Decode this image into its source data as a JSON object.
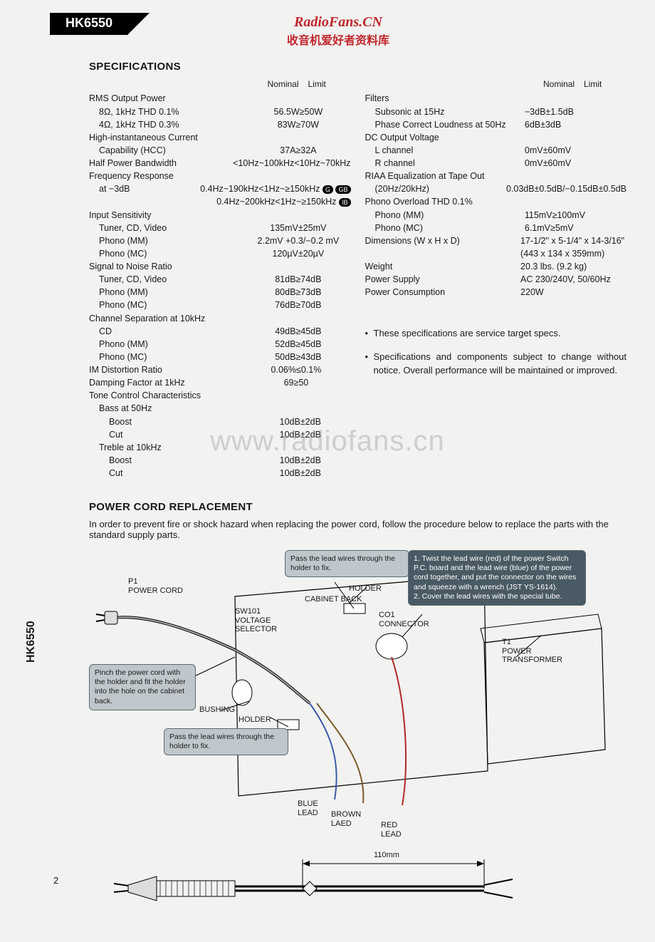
{
  "model": "HK6550",
  "watermark": {
    "line1": "RadioFans.CN",
    "line2": "收音机爱好者资料库",
    "big": "www.radiofans.cn"
  },
  "sections": {
    "specs_title": "SPECIFICATIONS",
    "power_cord_title": "POWER CORD REPLACEMENT",
    "power_cord_intro": "In order to prevent fire or shock hazard when replacing the power cord, follow the procedure below to replace the parts with the standard supply parts."
  },
  "headers": {
    "nominal": "Nominal",
    "limit": "Limit"
  },
  "specs_left": [
    {
      "label": "RMS Output Power",
      "val": ""
    },
    {
      "label": "8Ω, 1kHz THD 0.1%",
      "indent": 1,
      "val": "56.5W≥50W"
    },
    {
      "label": "4Ω, 1kHz THD 0.3%",
      "indent": 1,
      "val": "83W≥70W"
    },
    {
      "label": "High-instantaneous Current",
      "val": ""
    },
    {
      "label": "Capability (HCC)",
      "indent": 1,
      "val": "37A≥32A"
    },
    {
      "label": "Half Power Bandwidth",
      "val": "<10Hz~100kHz<10Hz~70kHz"
    },
    {
      "label": "Frequency Response",
      "val": ""
    },
    {
      "label": "at −3dB",
      "indent": 1,
      "val": "0.4Hz~190kHz<1Hz~≥150kHz",
      "badges": [
        "G",
        "GB"
      ]
    },
    {
      "label": "",
      "val": "0.4Hz~200kHz<1Hz~≥150kHz",
      "badges": [
        "IB"
      ]
    },
    {
      "label": "Input Sensitivity",
      "val": ""
    },
    {
      "label": "Tuner, CD, Video",
      "indent": 1,
      "val": "135mV±25mV"
    },
    {
      "label": "Phono (MM)",
      "indent": 1,
      "val": "2.2mV +0.3/−0.2 mV"
    },
    {
      "label": "Phono (MC)",
      "indent": 1,
      "val": "120µV±20µV"
    },
    {
      "label": "Signal to Noise Ratio",
      "val": ""
    },
    {
      "label": "Tuner, CD, Video",
      "indent": 1,
      "val": "81dB≥74dB"
    },
    {
      "label": "Phono (MM)",
      "indent": 1,
      "val": "80dB≥73dB"
    },
    {
      "label": "Phono (MC)",
      "indent": 1,
      "val": "76dB≥70dB"
    },
    {
      "label": "Channel Separation at 10kHz",
      "val": ""
    },
    {
      "label": "CD",
      "indent": 1,
      "val": "49dB≥45dB"
    },
    {
      "label": "Phono (MM)",
      "indent": 1,
      "val": "52dB≥45dB"
    },
    {
      "label": "Phono (MC)",
      "indent": 1,
      "val": "50dB≥43dB"
    },
    {
      "label": "IM Distortion Ratio",
      "val": "0.06%≤0.1%"
    },
    {
      "label": "Damping Factor at 1kHz",
      "val": "69≥50"
    },
    {
      "label": "Tone Control Characteristics",
      "val": ""
    },
    {
      "label": "Bass at 50Hz",
      "indent": 1,
      "val": ""
    },
    {
      "label": "Boost",
      "indent": 2,
      "val": "10dB±2dB"
    },
    {
      "label": "Cut",
      "indent": 2,
      "val": "10dB±2dB"
    },
    {
      "label": "Treble at 10kHz",
      "indent": 1,
      "val": ""
    },
    {
      "label": "Boost",
      "indent": 2,
      "val": "10dB±2dB"
    },
    {
      "label": "Cut",
      "indent": 2,
      "val": "10dB±2dB"
    }
  ],
  "specs_right": [
    {
      "label": "Filters",
      "val": ""
    },
    {
      "label": "Subsonic at 15Hz",
      "indent": 1,
      "val": "−3dB±1.5dB"
    },
    {
      "label": "Phase Correct Loudness at 50Hz",
      "indent": 1,
      "val": "6dB±3dB"
    },
    {
      "label": "DC Output Voltage",
      "val": ""
    },
    {
      "label": "L channel",
      "indent": 1,
      "val": "0mV±60mV"
    },
    {
      "label": "R channel",
      "indent": 1,
      "val": "0mV±60mV"
    },
    {
      "label": "RIAA Equalization at Tape Out",
      "val": ""
    },
    {
      "label": "(20Hz/20kHz)",
      "indent": 1,
      "val": "0.03dB±0.5dB/−0.15dB±0.5dB"
    },
    {
      "label": "Phono Overload THD 0.1%",
      "val": ""
    },
    {
      "label": "Phono (MM)",
      "indent": 1,
      "val": "115mV≥100mV"
    },
    {
      "label": "Phono (MC)",
      "indent": 1,
      "val": "6.1mV≥5mV"
    },
    {
      "label": "Dimensions (W x H x D)",
      "val": "17-1/2\" x 5-1/4\" x 14-3/16\""
    },
    {
      "label": "",
      "val": "(443 x 134 x 359mm)"
    },
    {
      "label": "Weight",
      "val": "20.3 lbs. (9.2 kg)"
    },
    {
      "label": "Power Supply",
      "val": "AC 230/240V, 50/60Hz"
    },
    {
      "label": "Power Consumption",
      "val": "220W"
    }
  ],
  "notes": [
    "These specifications are service target specs.",
    "Specifications and components subject to change without notice. Overall performance will be maintained or improved."
  ],
  "diagram": {
    "callouts": {
      "pinch": "Pinch the power cord with the holder and fit the holder into the hole on the cabinet back.",
      "pass1": "Pass the lead wires through the holder to fix.",
      "pass2": "Pass the lead wires through the holder to fix.",
      "twist": "1. Twist the lead wire (red) of the power Switch P.C. board and the lead wire (blue) of the power cord together, and put the connector on the wires and squeeze with a wrench (JST YS-1614).\n2. Cover the lead wires with the special tube."
    },
    "labels": {
      "p1": "P1\nPOWER CORD",
      "sw101": "SW101\nVOLTAGE\nSELECTOR",
      "holder": "HOLDER",
      "cabinet_back": "CABINET BACK",
      "co1": "CO1\nCONNECTOR",
      "t1": "T1\nPOWER\nTRANSFORMER",
      "bushing": "BUSHING",
      "holder2": "HOLDER",
      "blue": "BLUE\nLEAD",
      "brown": "BROWN\nLAED",
      "red": "RED\nLEAD",
      "dim": "110mm"
    }
  },
  "page_number": "2"
}
